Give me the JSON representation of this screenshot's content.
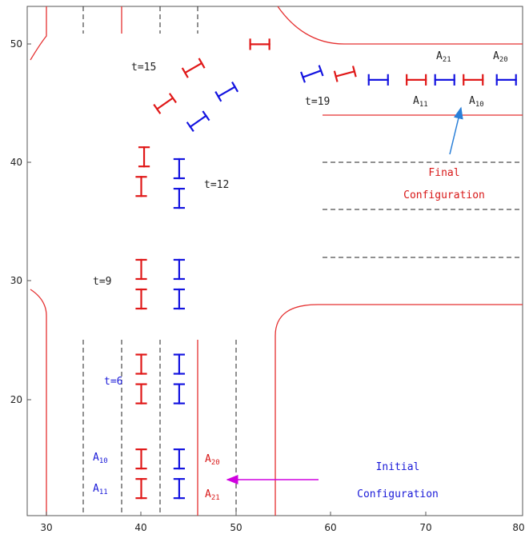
{
  "axes": {
    "x_ticks": [
      "30",
      "40",
      "50",
      "60",
      "70",
      "80"
    ],
    "y_ticks": [
      "20",
      "30",
      "40",
      "50"
    ],
    "xlim": [
      28,
      80
    ],
    "ylim": [
      9,
      54
    ]
  },
  "colors": {
    "road": "#e53030",
    "lane": "#222222",
    "red_vehicle": "#e01818",
    "blue_vehicle": "#1414e0",
    "blue_text": "#1a1ad8",
    "red_text": "#d81818",
    "dark_text": "#222222",
    "arrow_magenta": "#d000e0",
    "arrow_blue": "#2a7fd8"
  },
  "labels": {
    "t15": "t=15",
    "t19": "t=19",
    "t12": "t=12",
    "t9": "t=9",
    "t6": "t=6",
    "final_line1": "Final",
    "final_line2": "Configuration",
    "initial_line1": "Initial",
    "initial_line2": "Configuration",
    "a_left_1_main": "A",
    "a_left_1_sub": "10",
    "a_left_2_main": "A",
    "a_left_2_sub": "11",
    "a_right_1_main": "A",
    "a_right_1_sub": "20",
    "a_right_2_main": "A",
    "a_right_2_sub": "21",
    "fa21_main": "A",
    "fa21_sub": "21",
    "fa20_main": "A",
    "fa20_sub": "20",
    "fa11_main": "A",
    "fa11_sub": "11",
    "fa10_main": "A",
    "fa10_sub": "10"
  },
  "vehicles": [
    {
      "x": 40,
      "y": 12.5,
      "angle": 0,
      "color": "red"
    },
    {
      "x": 40,
      "y": 15,
      "angle": 0,
      "color": "red"
    },
    {
      "x": 44,
      "y": 12.5,
      "angle": 0,
      "color": "blue"
    },
    {
      "x": 44,
      "y": 15,
      "angle": 0,
      "color": "blue"
    },
    {
      "x": 40,
      "y": 20.5,
      "angle": 0,
      "color": "red"
    },
    {
      "x": 40,
      "y": 23,
      "angle": 0,
      "color": "red"
    },
    {
      "x": 44,
      "y": 20.5,
      "angle": 0,
      "color": "blue"
    },
    {
      "x": 44,
      "y": 23,
      "angle": 0,
      "color": "blue"
    },
    {
      "x": 40,
      "y": 28.5,
      "angle": 0,
      "color": "red"
    },
    {
      "x": 40,
      "y": 31,
      "angle": 0,
      "color": "red"
    },
    {
      "x": 44,
      "y": 28.5,
      "angle": 0,
      "color": "blue"
    },
    {
      "x": 44,
      "y": 31,
      "angle": 0,
      "color": "blue"
    },
    {
      "x": 40,
      "y": 38,
      "angle": 0,
      "color": "red"
    },
    {
      "x": 40.3,
      "y": 40.5,
      "angle": 0,
      "color": "red"
    },
    {
      "x": 44,
      "y": 37,
      "angle": 0,
      "color": "blue"
    },
    {
      "x": 44,
      "y": 39.5,
      "angle": 0,
      "color": "blue"
    },
    {
      "x": 42.5,
      "y": 45,
      "angle": 55,
      "color": "red"
    },
    {
      "x": 45.5,
      "y": 48,
      "angle": 60,
      "color": "red"
    },
    {
      "x": 46,
      "y": 43.5,
      "angle": 55,
      "color": "blue"
    },
    {
      "x": 49,
      "y": 46,
      "angle": 60,
      "color": "blue"
    },
    {
      "x": 52.5,
      "y": 50,
      "angle": 90,
      "color": "red"
    },
    {
      "x": 58,
      "y": 47.5,
      "angle": 70,
      "color": "blue"
    },
    {
      "x": 61.5,
      "y": 47.5,
      "angle": 75,
      "color": "red"
    },
    {
      "x": 65,
      "y": 47,
      "angle": 90,
      "color": "blue"
    },
    {
      "x": 69,
      "y": 47,
      "angle": 90,
      "color": "red"
    },
    {
      "x": 72,
      "y": 47,
      "angle": 90,
      "color": "blue"
    },
    {
      "x": 75,
      "y": 47,
      "angle": 90,
      "color": "red"
    },
    {
      "x": 78.5,
      "y": 47,
      "angle": 90,
      "color": "blue"
    }
  ]
}
